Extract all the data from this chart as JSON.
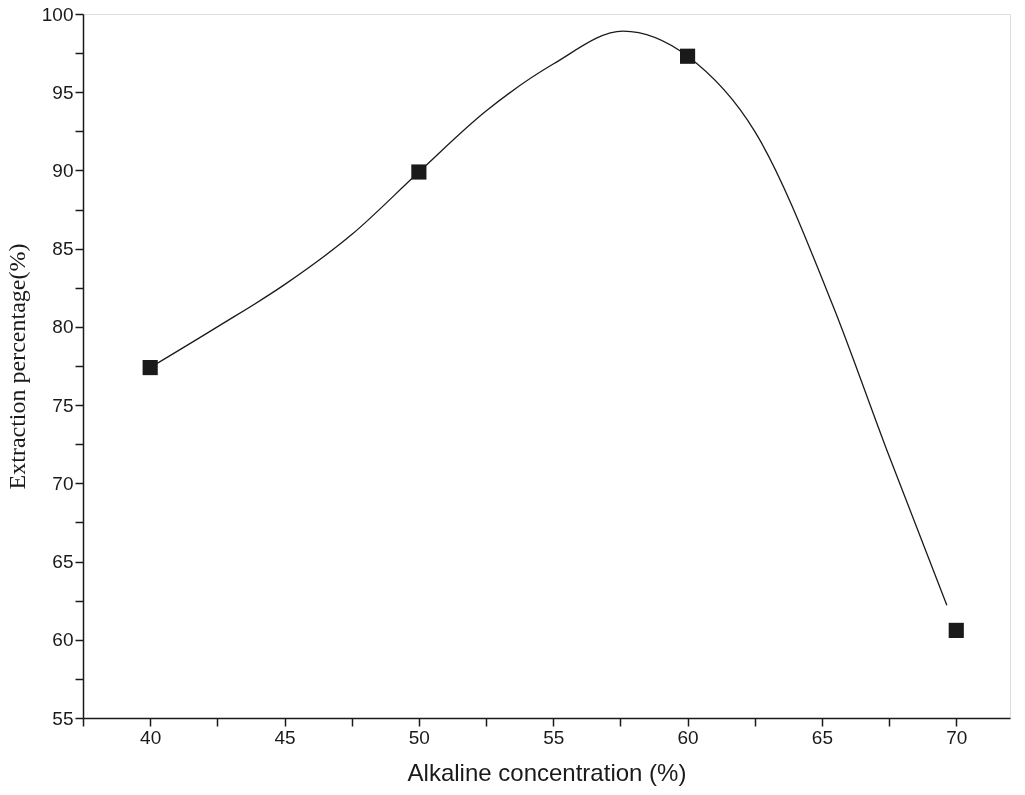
{
  "chart_data": {
    "type": "scatter",
    "xlabel": "Alkaline concentration (%)",
    "ylabel": "Extraction percentage(%)",
    "marker": "square",
    "xlim": [
      37.5,
      72
    ],
    "ylim": [
      55,
      100
    ],
    "xticks": [
      {
        "value": 37.5,
        "label": null
      },
      40,
      {
        "value": 42.5,
        "label": null
      },
      45,
      {
        "value": 47.5,
        "label": null
      },
      50,
      {
        "value": 52.5,
        "label": null
      },
      55,
      {
        "value": 57.5,
        "label": null
      },
      60,
      {
        "value": 62.5,
        "label": null
      },
      65,
      {
        "value": 67.5,
        "label": null
      },
      70
    ],
    "yticks": [
      55,
      {
        "value": 57.5,
        "label": null
      },
      60,
      {
        "value": 62.5,
        "label": null
      },
      65,
      {
        "value": 67.5,
        "label": null
      },
      70,
      {
        "value": 72.5,
        "label": null
      },
      75,
      {
        "value": 77.5,
        "label": null
      },
      80,
      {
        "value": 82.5,
        "label": null
      },
      85,
      {
        "value": 87.5,
        "label": null
      },
      90,
      {
        "value": 92.5,
        "label": null
      },
      95,
      {
        "value": 97.5,
        "label": null
      },
      100
    ],
    "series": [
      {
        "color": "#1a1a1a",
        "x": [
          40,
          50,
          60,
          70
        ],
        "values": [
          77.4,
          89.9,
          97.3,
          60.6
        ]
      },
      {
        "type": "line",
        "color": "#1a1a1a",
        "marker": "none",
        "x": [
          40,
          42.5,
          45,
          47.5,
          50,
          52.5,
          55,
          57.6,
          60,
          62.5,
          65.4,
          67.4,
          69.65
        ],
        "values": [
          77.4,
          80.0,
          82.7,
          85.9,
          89.9,
          93.8,
          96.8,
          98.9,
          97.3,
          92.5,
          81.4,
          72.2,
          62.2
        ]
      }
    ]
  }
}
